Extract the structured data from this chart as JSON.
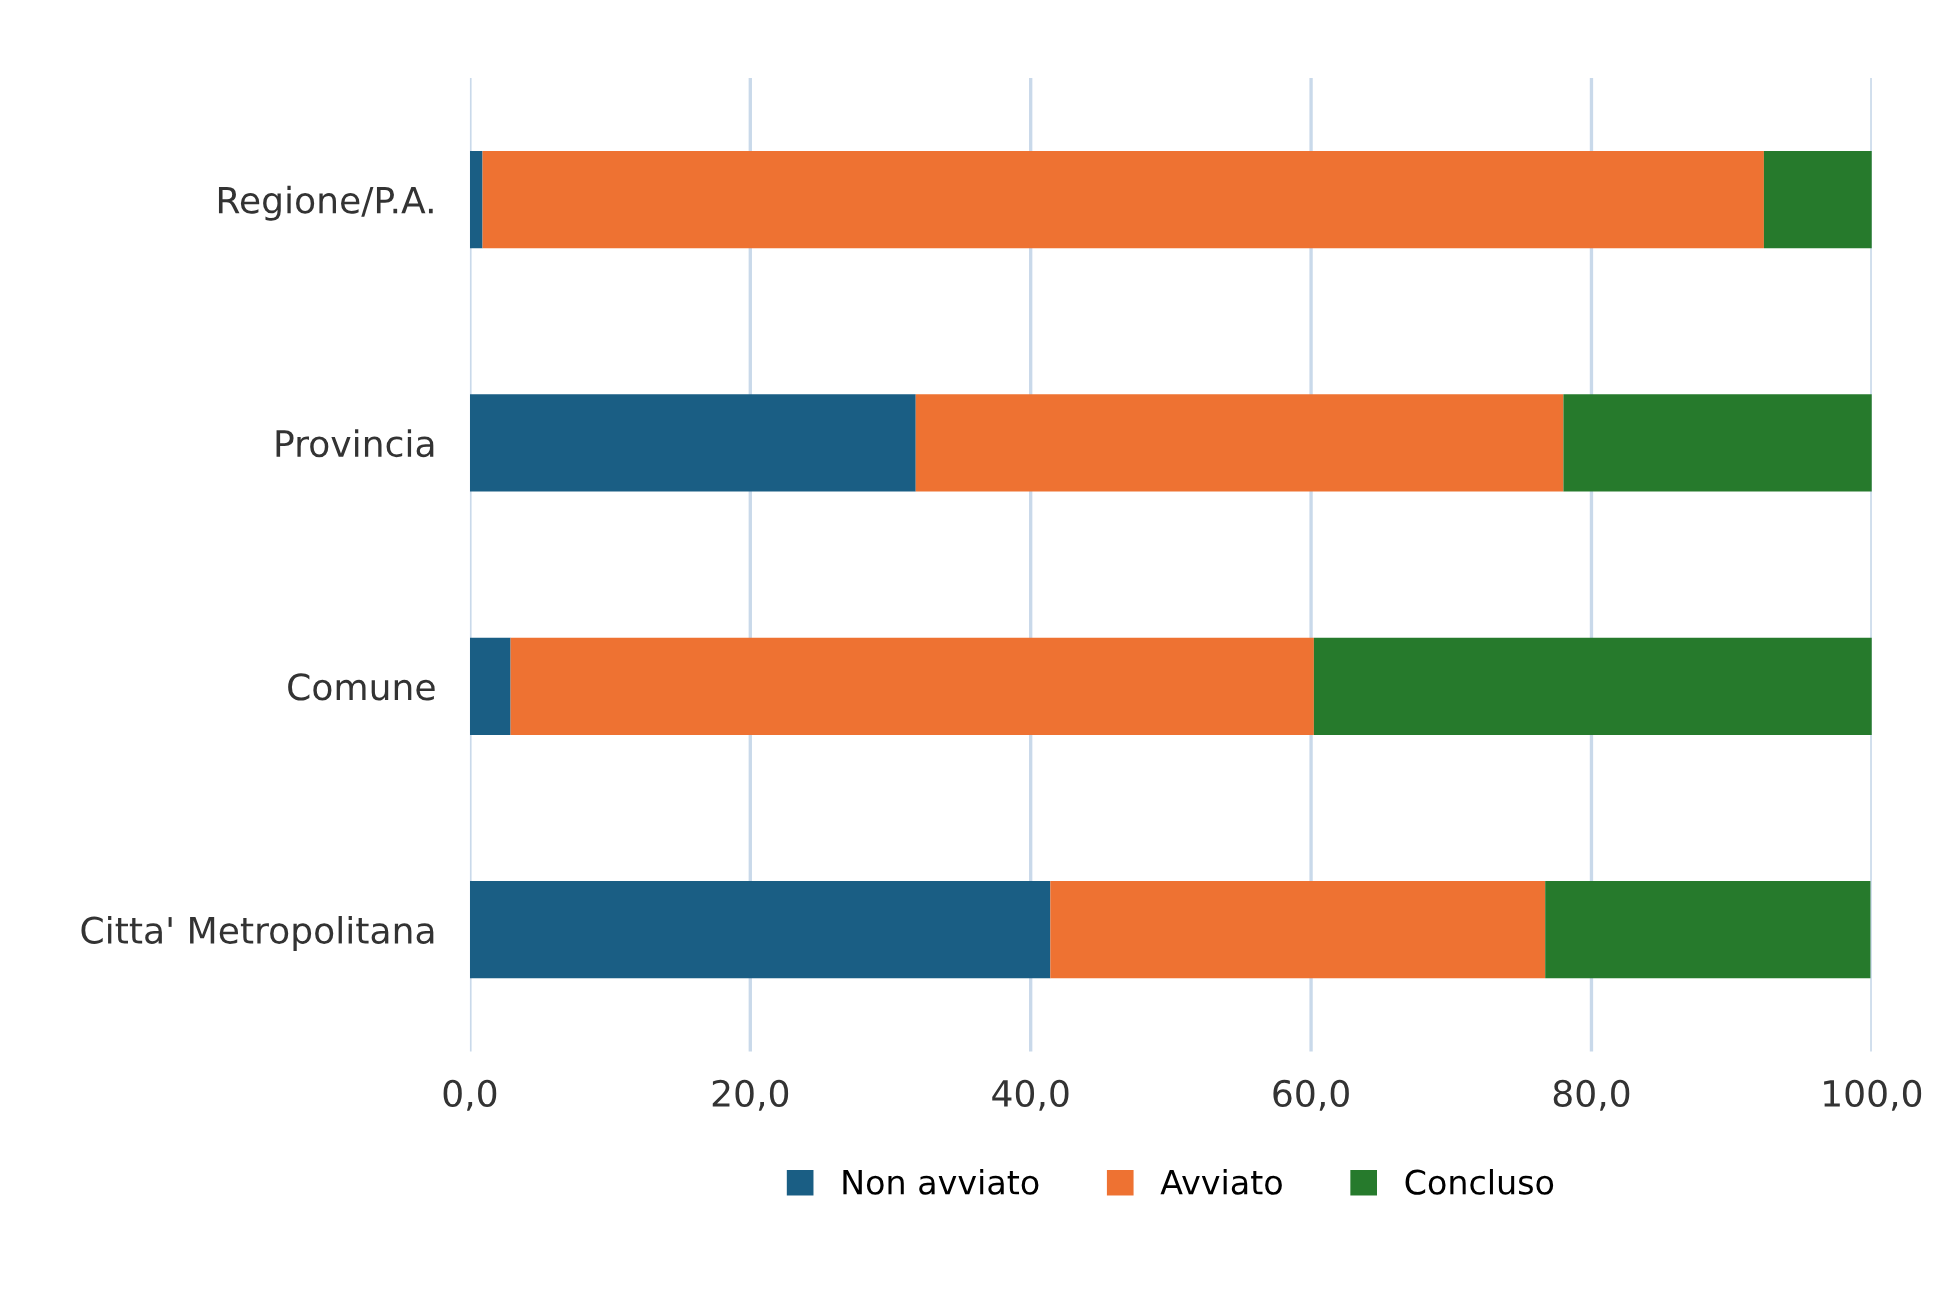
{
  "chart_data": {
    "type": "bar",
    "orientation": "horizontal",
    "stacked": true,
    "categories": [
      "Regione/P.A.",
      "Provincia",
      "Comune",
      "Citta' Metropolitana"
    ],
    "series": [
      {
        "name": "Non avviato",
        "color": "#1a5e84",
        "values": [
          0.9,
          31.8,
          2.9,
          41.4
        ]
      },
      {
        "name": "Avviato",
        "color": "#ee7232",
        "values": [
          91.4,
          46.2,
          57.3,
          35.3
        ]
      },
      {
        "name": "Concluso",
        "color": "#267a2c",
        "values": [
          7.7,
          22.0,
          39.8,
          23.2
        ]
      }
    ],
    "xlim": [
      0,
      100
    ],
    "xticks": [
      {
        "value": 0,
        "label": "0,0"
      },
      {
        "value": 20,
        "label": "20,0"
      },
      {
        "value": 40,
        "label": "40,0"
      },
      {
        "value": 60,
        "label": "60,0"
      },
      {
        "value": 80,
        "label": "80,0"
      },
      {
        "value": 100,
        "label": "100,0"
      }
    ],
    "grid": "x",
    "legend": "bottom"
  }
}
